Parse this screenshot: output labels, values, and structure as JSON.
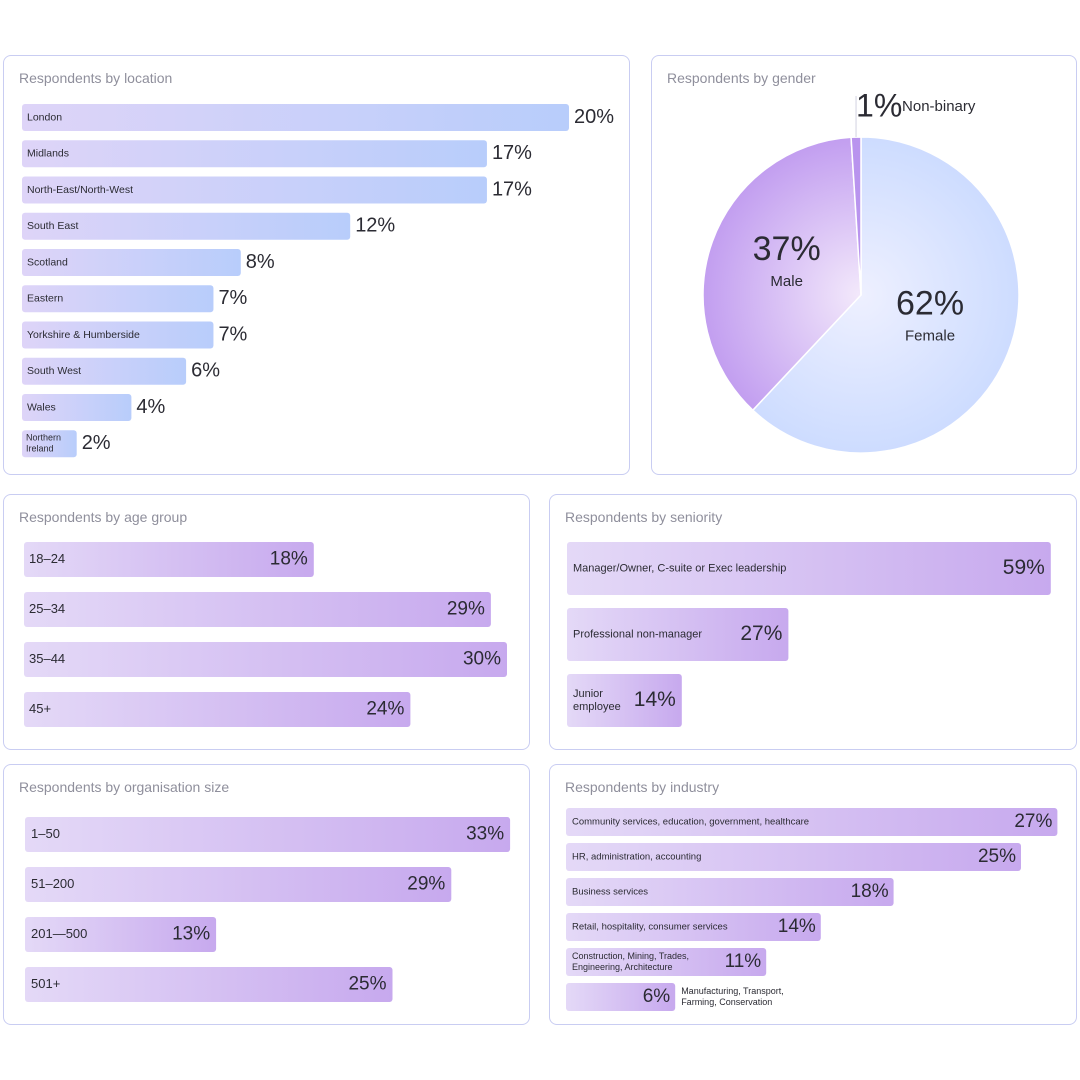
{
  "panels": {
    "location": {
      "title": "Respondents by location"
    },
    "gender": {
      "title": "Respondents by gender"
    },
    "age": {
      "title": "Respondents by age group"
    },
    "seniority": {
      "title": "Respondents by seniority"
    },
    "orgsize": {
      "title": "Respondents by organisation size"
    },
    "industry": {
      "title": "Respondents by industry"
    }
  },
  "colors": {
    "blue_end": "#b8cdfb",
    "purple_start": "#e4d9f7",
    "purple_end": "#c7a9ee",
    "blue_start": "#ded4f8",
    "pie_female": "#cddcff",
    "pie_male": "#c29ef0",
    "pie_nonbinary": "#b994ee",
    "border": "#c9cdf2",
    "title_text": "#8f8f9c",
    "value_text": "#2b2b33"
  },
  "chart_data": [
    {
      "id": "location",
      "type": "bar",
      "orientation": "horizontal",
      "title": "Respondents by location",
      "categories": [
        "London",
        "Midlands",
        "North-East/North-West",
        "South East",
        "Scotland",
        "Eastern",
        "Yorkshire & Humberside",
        "South West",
        "Wales",
        "Northern Ireland"
      ],
      "values": [
        20,
        17,
        17,
        12,
        8,
        7,
        7,
        6,
        4,
        2
      ],
      "value_labels": [
        "20%",
        "17%",
        "17%",
        "12%",
        "8%",
        "7%",
        "7%",
        "6%",
        "4%",
        "2%"
      ],
      "unit": "%"
    },
    {
      "id": "gender",
      "type": "pie",
      "title": "Respondents by gender",
      "categories": [
        "Female",
        "Male",
        "Non-binary"
      ],
      "values": [
        62,
        37,
        1
      ],
      "value_labels": [
        "62%",
        "37%",
        "1%"
      ],
      "unit": "%"
    },
    {
      "id": "age",
      "type": "bar",
      "orientation": "horizontal",
      "title": "Respondents by age group",
      "categories": [
        "18–24",
        "25–34",
        "35–44",
        "45+"
      ],
      "values": [
        18,
        29,
        30,
        24
      ],
      "value_labels": [
        "18%",
        "29%",
        "30%",
        "24%"
      ],
      "unit": "%"
    },
    {
      "id": "seniority",
      "type": "bar",
      "orientation": "horizontal",
      "title": "Respondents by seniority",
      "categories": [
        "Manager/Owner, C-suite or Exec leadership",
        "Professional non-manager",
        "Junior employee"
      ],
      "values": [
        59,
        27,
        14
      ],
      "value_labels": [
        "59%",
        "27%",
        "14%"
      ],
      "unit": "%"
    },
    {
      "id": "orgsize",
      "type": "bar",
      "orientation": "horizontal",
      "title": "Respondents by organisation size",
      "categories": [
        "1–50",
        "51–200",
        "201—500",
        "501+"
      ],
      "values": [
        33,
        29,
        13,
        25
      ],
      "value_labels": [
        "33%",
        "29%",
        "13%",
        "25%"
      ],
      "unit": "%"
    },
    {
      "id": "industry",
      "type": "bar",
      "orientation": "horizontal",
      "title": "Respondents by industry",
      "categories": [
        "Community services, education, government, healthcare",
        "HR, administration, accounting",
        "Business services",
        "Retail, hospitality, consumer services",
        "Construction, Mining, Trades, Engineering, Architecture",
        "Manufacturing, Transport, Farming, Conservation"
      ],
      "values": [
        27,
        25,
        18,
        14,
        11,
        6
      ],
      "value_labels": [
        "27%",
        "25%",
        "18%",
        "14%",
        "11%",
        "6%"
      ],
      "unit": "%"
    }
  ]
}
